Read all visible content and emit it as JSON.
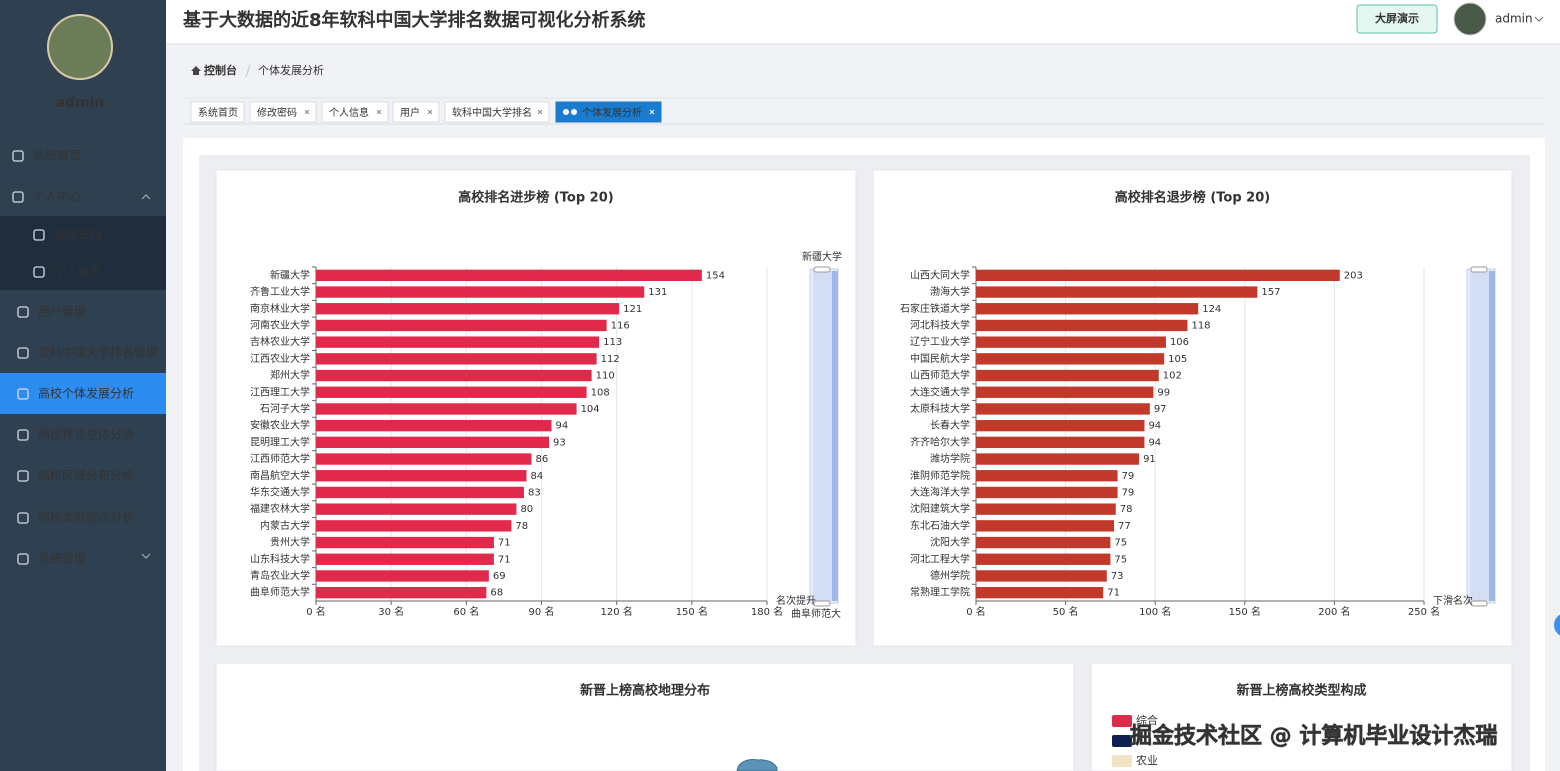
{
  "header": {
    "title": "基于大数据的近8年软科中国大学排名数据可视化分析系统",
    "button": "大屏演示",
    "user": "admin"
  },
  "sidebar": {
    "username": "admin",
    "menu": [
      "系统首页",
      "个人中心",
      "修改密码",
      "个人信息",
      "用户管理",
      "软科中国大学排名管理",
      "高校个体发展分析",
      "高校排名总体分析",
      "高校区域分布分析",
      "高校类型层次分析",
      "系统管理"
    ]
  },
  "breadcrumb": [
    "控制台",
    "个体发展分析"
  ],
  "tabs": [
    "系统首页",
    "修改密码",
    "个人信息",
    "用户",
    "软科中国大学排名",
    "个体发展分析"
  ],
  "watermark": "掘金技术社区 @ 计算机毕业设计杰瑞",
  "chart_data": [
    {
      "type": "bar",
      "orientation": "horizontal",
      "title": "高校排名进步榜 (Top 20)",
      "categories": [
        "新疆大学",
        "齐鲁工业大学",
        "南京林业大学",
        "河南农业大学",
        "吉林农业大学",
        "江西农业大学",
        "郑州大学",
        "江西理工大学",
        "石河子大学",
        "安徽农业大学",
        "昆明理工大学",
        "江西师范大学",
        "南昌航空大学",
        "华东交通大学",
        "福建农林大学",
        "内蒙古大学",
        "贵州大学",
        "山东科技大学",
        "青岛农业大学",
        "曲阜师范大学"
      ],
      "values": [
        154,
        131,
        121,
        116,
        113,
        112,
        110,
        108,
        104,
        94,
        93,
        86,
        84,
        83,
        80,
        78,
        71,
        71,
        69,
        68
      ],
      "color": "#e0294b",
      "x_label": "名次提升",
      "xlim": [
        0,
        180
      ],
      "xticks": [
        {
          "value": 0,
          "label": "0 名"
        },
        {
          "value": 30,
          "label": "30 名"
        },
        {
          "value": 60,
          "label": "60 名"
        },
        {
          "value": 90,
          "label": "90 名"
        },
        {
          "value": 120,
          "label": "120 名"
        },
        {
          "value": 150,
          "label": "150 名"
        },
        {
          "value": 180,
          "label": "180 名"
        }
      ],
      "grid": true,
      "zoom_labels": [
        "新疆大学",
        "曲阜师范大"
      ]
    },
    {
      "type": "bar",
      "orientation": "horizontal",
      "title": "高校排名退步榜 (Top 20)",
      "categories": [
        "山西大同大学",
        "渤海大学",
        "石家庄铁道大学",
        "河北科技大学",
        "辽宁工业大学",
        "中国民航大学",
        "山西师范大学",
        "大连交通大学",
        "太原科技大学",
        "长春大学",
        "齐齐哈尔大学",
        "潍坊学院",
        "淮阴师范学院",
        "大连海洋大学",
        "沈阳建筑大学",
        "东北石油大学",
        "沈阳大学",
        "河北工程大学",
        "德州学院",
        "常熟理工学院"
      ],
      "values": [
        203,
        157,
        124,
        118,
        106,
        105,
        102,
        99,
        97,
        94,
        94,
        91,
        79,
        79,
        78,
        77,
        75,
        75,
        73,
        71
      ],
      "color": "#c0392b",
      "x_label": "下滑名次",
      "xlim": [
        0,
        250
      ],
      "xticks": [
        {
          "value": 0,
          "label": "0 名"
        },
        {
          "value": 50,
          "label": "50 名"
        },
        {
          "value": 100,
          "label": "100 名"
        },
        {
          "value": 150,
          "label": "150 名"
        },
        {
          "value": 200,
          "label": "200 名"
        },
        {
          "value": 250,
          "label": "250 名"
        }
      ],
      "grid": true
    },
    {
      "type": "map",
      "title": "新晋上榜高校地理分布"
    },
    {
      "type": "pie",
      "title": "新晋上榜高校类型构成",
      "legend": [
        {
          "name": "综合",
          "color": "#dc2a4a"
        },
        {
          "name": "农业",
          "color": "#f2e3c4"
        }
      ]
    }
  ]
}
